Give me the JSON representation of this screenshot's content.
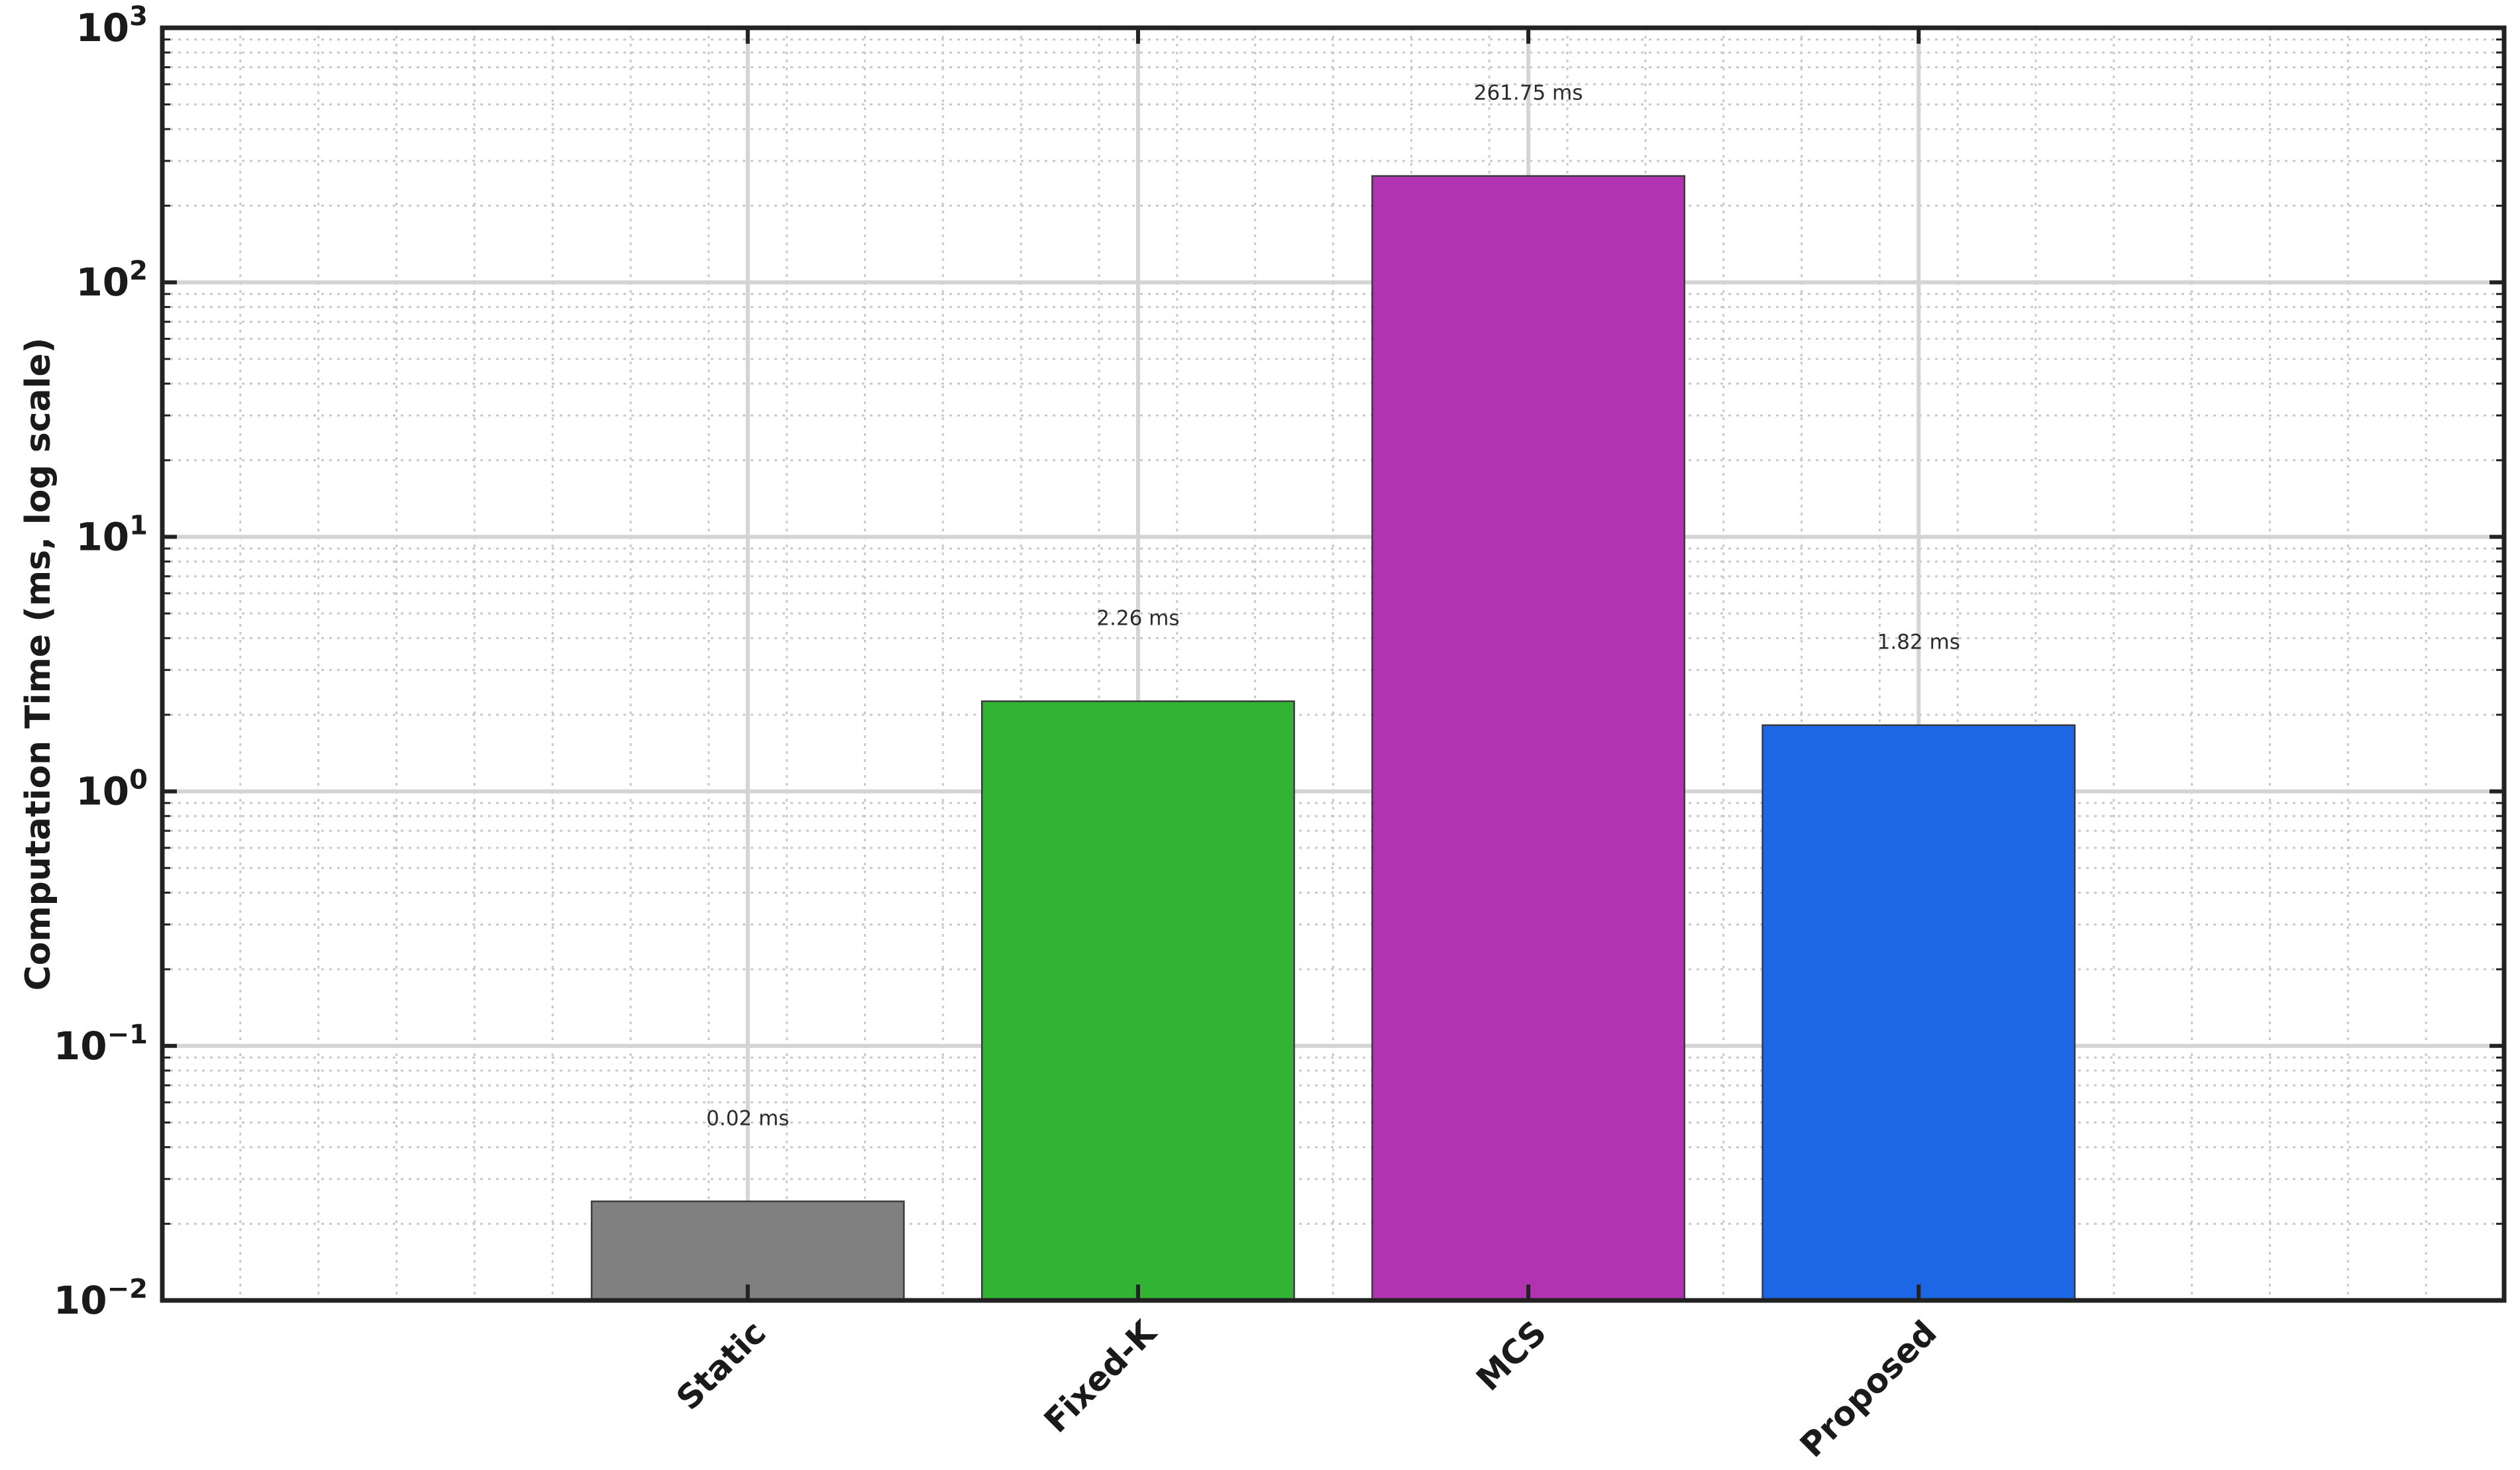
{
  "chart_data": {
    "type": "bar",
    "title": "",
    "xlabel": "",
    "ylabel": "Computation Time (ms, log scale)",
    "yscale": "log",
    "ylim": [
      0.01,
      1000
    ],
    "xlim": [
      -1.5,
      4.5
    ],
    "yticks": [
      {
        "value": 0.01,
        "base": "10",
        "exp": "−2"
      },
      {
        "value": 0.1,
        "base": "10",
        "exp": "−1"
      },
      {
        "value": 1,
        "base": "10",
        "exp": "0"
      },
      {
        "value": 10,
        "base": "10",
        "exp": "1"
      },
      {
        "value": 100,
        "base": "10",
        "exp": "2"
      },
      {
        "value": 1000,
        "base": "10",
        "exp": "3"
      }
    ],
    "grid": true,
    "categories": [
      "Static",
      "Fixed-K",
      "MCS",
      "Proposed"
    ],
    "values": [
      0.0245,
      2.26,
      261.75,
      1.82
    ],
    "data_labels": [
      "0.02 ms",
      "2.26 ms",
      "261.75 ms",
      "1.82 ms"
    ],
    "colors": [
      "#808080",
      "#33b333",
      "#b233b2",
      "#1d66e5"
    ]
  }
}
